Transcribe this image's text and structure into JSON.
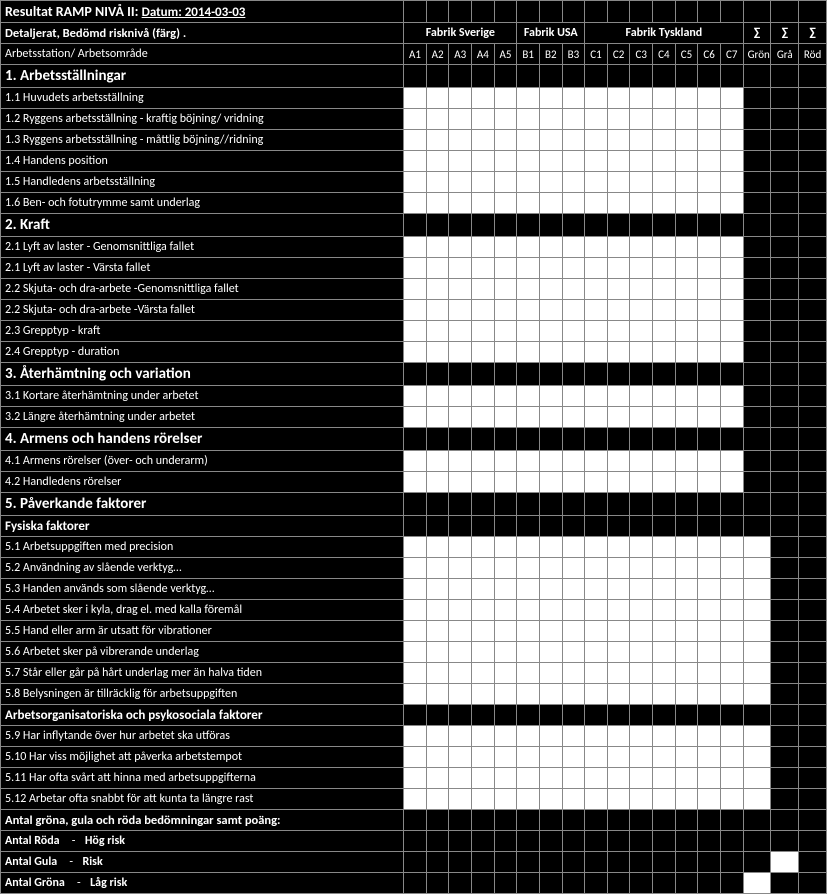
{
  "meta": {
    "title": "Resultat RAMP NIVÅ II:",
    "date_label": "Datum:",
    "date_value": "2014-03-03",
    "row2": "Detaljerat, Bedömd risknivå (färg) .",
    "row3": "Arbetsstation/ Arbetsområde"
  },
  "groups": [
    {
      "label": "Fabrik  Sverige",
      "span": 5
    },
    {
      "label": "Fabrik  USA",
      "span": 3
    },
    {
      "label": "Fabrik  Tyskland",
      "span": 7
    }
  ],
  "columns": [
    "A1",
    "A2",
    "A3",
    "A4",
    "A5",
    "B1",
    "B2",
    "B3",
    "C1",
    "C2",
    "C3",
    "C4",
    "C5",
    "C6",
    "C7"
  ],
  "sum_headers": [
    "∑",
    "∑",
    "∑"
  ],
  "sum_sub": [
    "Grön",
    "Grå",
    "Röd"
  ],
  "sections": [
    {
      "header": "1. Arbetsställningar",
      "rows": [
        {
          "label": "1.1 Huvudets arbetsställning",
          "type": "open",
          "sums": [
            "b",
            "b",
            "b"
          ]
        },
        {
          "label": "1.2 Ryggens arbetsställning - kraftig böjning/ vridning",
          "type": "open",
          "sums": [
            "b",
            "b",
            "b"
          ]
        },
        {
          "label": "1.3 Ryggens arbetsställning - måttlig böjning//ridning",
          "type": "open",
          "sums": [
            "b",
            "b",
            "b"
          ]
        },
        {
          "label": "1.4 Handens position",
          "type": "open",
          "sums": [
            "b",
            "b",
            "b"
          ]
        },
        {
          "label": "1.5 Handledens arbetsställning",
          "type": "open",
          "sums": [
            "b",
            "b",
            "b"
          ]
        },
        {
          "label": "1.6 Ben- och fotutrymme samt underlag",
          "type": "open",
          "sums": [
            "b",
            "b",
            "b"
          ]
        }
      ]
    },
    {
      "header": "2. Kraft",
      "rows": [
        {
          "label": "2.1 Lyft av laster - Genomsnittliga fallet",
          "type": "open",
          "sums": [
            "b",
            "b",
            "b"
          ]
        },
        {
          "label": "2.1 Lyft av laster - Värsta fallet",
          "type": "open",
          "sums": [
            "b",
            "b",
            "b"
          ]
        },
        {
          "label": "2.2 Skjuta- och dra-arbete -Genomsnittliga fallet",
          "type": "open",
          "sums": [
            "b",
            "b",
            "b"
          ]
        },
        {
          "label": "2.2 Skjuta- och dra-arbete -Värsta fallet",
          "type": "open",
          "sums": [
            "b",
            "b",
            "b"
          ]
        },
        {
          "label": "2.3 Grepptyp - kraft",
          "type": "open",
          "sums": [
            "b",
            "b",
            "b"
          ]
        },
        {
          "label": "2.4 Grepptyp - duration",
          "type": "open",
          "sums": [
            "b",
            "b",
            "b"
          ]
        }
      ]
    },
    {
      "header": "3. Återhämtning och variation",
      "rows": [
        {
          "label": "3.1  Kortare återhämtning under arbetet",
          "type": "open",
          "sums": [
            "b",
            "b",
            "b"
          ]
        },
        {
          "label": "3.2 Längre återhämtning under arbetet",
          "type": "open",
          "sums": [
            "b",
            "b",
            "b"
          ]
        }
      ]
    },
    {
      "header": "4. Armens och handens rörelser",
      "rows": [
        {
          "label": "4.1 Armens rörelser (över- och underarm)",
          "type": "open",
          "sums": [
            "b",
            "b",
            "b"
          ]
        },
        {
          "label": "4.2 Handledens rörelser",
          "type": "open",
          "sums": [
            "b",
            "b",
            "b"
          ]
        }
      ]
    },
    {
      "header": "5. Påverkande faktorer",
      "subheaders_and_rows": [
        {
          "sub": "Fysiska faktorer"
        },
        {
          "label": "5.1 Arbetsuppgiften med precision",
          "type": "open",
          "sums": [
            "w",
            "b",
            "b"
          ]
        },
        {
          "label": "5.2 Användning av slående verktyg…",
          "type": "open",
          "sums": [
            "w",
            "b",
            "b"
          ]
        },
        {
          "label": "5.3 Handen används som slående verktyg…",
          "type": "open",
          "sums": [
            "w",
            "b",
            "b"
          ]
        },
        {
          "label": "5.4 Arbetet sker i kyla, drag el. med kalla föremål",
          "type": "open",
          "sums": [
            "w",
            "b",
            "b"
          ]
        },
        {
          "label": "5.5 Hand eller arm är utsatt för vibrationer",
          "type": "open",
          "sums": [
            "w",
            "b",
            "b"
          ]
        },
        {
          "label": "5.6 Arbetet sker på vibrerande underlag",
          "type": "open",
          "sums": [
            "w",
            "b",
            "b"
          ]
        },
        {
          "label": "5.7 Står eller går på hårt underlag mer än halva tiden",
          "type": "open",
          "sums": [
            "w",
            "b",
            "b"
          ]
        },
        {
          "label": "5.8 Belysningen är tillräcklig för arbetsuppgiften",
          "type": "open",
          "sums": [
            "w",
            "b",
            "b"
          ]
        },
        {
          "sub": "Arbetsorganisatoriska och psykosociala faktorer"
        },
        {
          "label": "5.9 Har inflytande över hur arbetet ska utföras",
          "type": "open",
          "sums": [
            "w",
            "b",
            "b"
          ]
        },
        {
          "label": "5.10 Har viss möjlighet att påverka arbetstempot",
          "type": "open",
          "sums": [
            "w",
            "b",
            "b"
          ]
        },
        {
          "label": "5.11 Har ofta svårt att hinna med arbetsuppgifterna",
          "type": "open",
          "sums": [
            "w",
            "b",
            "b"
          ]
        },
        {
          "label": "5.12 Arbetar ofta snabbt för att kunta ta längre rast",
          "type": "open",
          "sums": [
            "w",
            "b",
            "b"
          ]
        }
      ]
    }
  ],
  "footer": {
    "summary_label": "Antal gröna, gula och röda bedömningar samt poäng:",
    "risks": [
      {
        "prefix": "Antal Röda",
        "dash": "-",
        "level": "Hög risk",
        "sums": [
          "b",
          "b",
          "b"
        ]
      },
      {
        "prefix": "Antal Gula",
        "dash": "-",
        "level": "Risk",
        "sums": [
          "b",
          "w",
          "b"
        ]
      },
      {
        "prefix": "Antal Gröna",
        "dash": "-",
        "level": "Låg risk",
        "sums": [
          "w",
          "b",
          "b"
        ]
      }
    ]
  },
  "style": {
    "bg_black": "#000000",
    "bg_white": "#ffffff",
    "border": "#888888",
    "num_data_cols": 15,
    "num_sum_cols": 3
  }
}
